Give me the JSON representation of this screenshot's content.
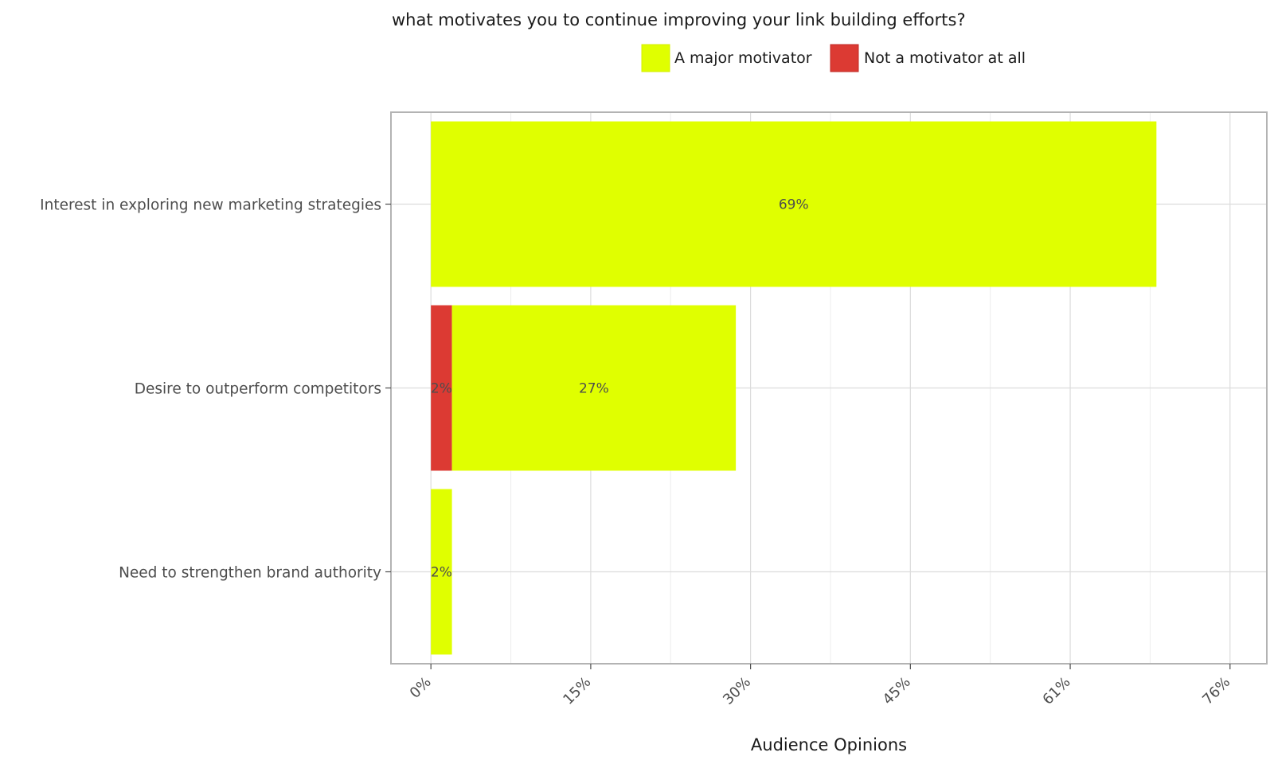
{
  "chart_data": {
    "type": "bar",
    "orientation": "horizontal",
    "stacked": true,
    "title": "what motivates you to continue improving your link building efforts?",
    "xlabel": "Audience Opinions",
    "ylabel": "",
    "categories": [
      "Interest in exploring new marketing strategies",
      "Desire to outperform competitors",
      "Need to strengthen brand authority"
    ],
    "series": [
      {
        "name": "Not a motivator at all",
        "color": "#dc3a33",
        "values": [
          0,
          2,
          0
        ],
        "labels": [
          "",
          "2%",
          ""
        ]
      },
      {
        "name": "A major motivator",
        "color": "#e0ff00",
        "values": [
          69,
          27,
          2
        ],
        "labels": [
          "69%",
          "27%",
          "2%"
        ]
      }
    ],
    "legend_order": [
      "A major motivator",
      "Not a motivator at all"
    ],
    "legend_position": "top",
    "xlim": [
      -3.8,
      79.5
    ],
    "x_ticks": [
      0,
      15.2,
      30.4,
      45.6,
      60.8,
      76
    ],
    "x_tick_labels": [
      "0%",
      "15%",
      "30%",
      "45%",
      "61%",
      "76%"
    ],
    "grid": true
  }
}
